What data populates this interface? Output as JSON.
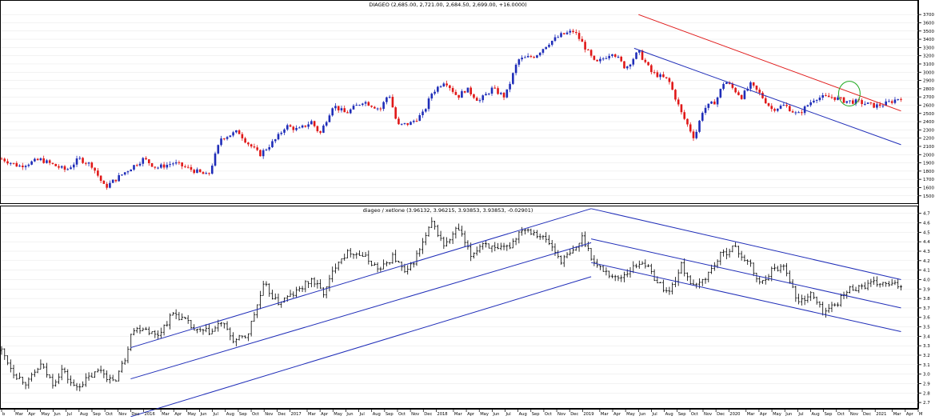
{
  "chart_data": [
    {
      "type": "candlestick",
      "title": "DIAGEO (2,685.00, 2,721.00, 2,684.50, 2,699.00, +16.0000)",
      "ylim": [
        1420,
        3760
      ],
      "yticks": [
        1500,
        1600,
        1700,
        1800,
        1900,
        2000,
        2100,
        2200,
        2300,
        2400,
        2500,
        2600,
        2700,
        2800,
        2900,
        3000,
        3100,
        3200,
        3300,
        3400,
        3500,
        3600,
        3700
      ],
      "up_color": "#1f2db8",
      "down_color": "#e01818",
      "anchors_t": [
        0,
        4,
        9,
        15,
        18,
        21,
        24,
        29,
        33,
        36,
        40,
        45,
        48,
        51,
        55,
        57,
        60,
        64,
        66,
        69,
        72,
        74,
        77,
        80,
        84,
        88,
        90,
        92,
        95,
        98,
        100,
        103,
        106,
        108,
        111,
        114,
        117,
        120,
        124,
        127,
        130,
        133,
        135,
        138,
        142,
        145,
        148,
        151,
        155,
        158,
        161,
        163,
        166,
        168,
        171,
        172,
        174,
        176,
        179,
        182,
        185,
        189,
        193,
        196,
        199,
        203,
        205,
        207,
        209
      ],
      "anchors_v": [
        1950,
        1860,
        1940,
        1810,
        1950,
        1870,
        1600,
        1800,
        1950,
        1840,
        1900,
        1800,
        1740,
        2200,
        2280,
        2150,
        2000,
        2200,
        2350,
        2300,
        2400,
        2250,
        2600,
        2500,
        2650,
        2550,
        2750,
        2350,
        2380,
        2500,
        2750,
        2900,
        2700,
        2800,
        2650,
        2800,
        2700,
        3150,
        3200,
        3350,
        3450,
        3500,
        3350,
        3100,
        3250,
        3050,
        3250,
        3000,
        2900,
        2500,
        2200,
        2550,
        2650,
        2900,
        2750,
        2700,
        2850,
        2750,
        2550,
        2600,
        2480,
        2690,
        2700,
        2650,
        2640,
        2590,
        2610,
        2650,
        2699
      ],
      "channels": [
        {
          "color": "#e01818",
          "points": [
            [
              148,
              3700
            ],
            [
              209,
              2530
            ]
          ]
        },
        {
          "color": "#1f2db8",
          "points": [
            [
              147,
              3290
            ],
            [
              209,
              2120
            ]
          ]
        }
      ],
      "annotations": [
        {
          "type": "ellipse",
          "color": "#22aa22",
          "cx": 197,
          "cy": 2740,
          "rx": 2.5,
          "ry": 150
        }
      ]
    },
    {
      "type": "ohlc",
      "title": "diageo / xetlone (3.96132, 3.96215, 3.93853, 3.93853, -0.02901)",
      "ylim": [
        2.65,
        4.74
      ],
      "yticks": [
        2.7,
        2.8,
        2.9,
        3.0,
        3.1,
        3.2,
        3.3,
        3.4,
        3.5,
        3.6,
        3.7,
        3.8,
        3.9,
        4.0,
        4.1,
        4.2,
        4.3,
        4.4,
        4.5,
        4.6,
        4.7
      ],
      "bar_color": "#000000",
      "anchors_t": [
        0,
        3,
        6,
        9,
        12,
        14,
        17,
        20,
        23,
        26,
        29,
        30,
        33,
        36,
        40,
        43,
        45,
        49,
        51,
        54,
        57,
        61,
        64,
        66,
        68,
        72,
        75,
        78,
        81,
        84,
        88,
        91,
        94,
        97,
        100,
        103,
        106,
        109,
        112,
        115,
        118,
        121,
        124,
        127,
        130,
        133,
        135,
        138,
        140,
        143,
        146,
        149,
        152,
        155,
        158,
        161,
        164,
        167,
        170,
        174,
        176,
        179,
        182,
        185,
        188,
        191,
        194,
        197,
        200,
        203,
        205,
        207,
        209
      ],
      "anchors_v": [
        3.25,
        3.0,
        2.9,
        3.1,
        2.9,
        3.05,
        2.85,
        2.95,
        3.05,
        2.9,
        3.2,
        3.45,
        3.5,
        3.4,
        3.65,
        3.55,
        3.45,
        3.45,
        3.55,
        3.35,
        3.4,
        3.95,
        3.75,
        3.8,
        3.85,
        4.0,
        3.85,
        4.2,
        4.3,
        4.25,
        4.1,
        4.25,
        4.05,
        4.3,
        4.6,
        4.35,
        4.55,
        4.25,
        4.4,
        4.3,
        4.35,
        4.55,
        4.5,
        4.4,
        4.2,
        4.3,
        4.45,
        4.15,
        4.1,
        4.0,
        4.1,
        4.2,
        4.0,
        3.85,
        4.15,
        3.9,
        4.05,
        4.25,
        4.35,
        4.15,
        3.95,
        4.1,
        4.15,
        3.75,
        3.85,
        3.65,
        3.75,
        3.9,
        3.93,
        3.96,
        3.95,
        3.94,
        3.938
      ],
      "channels": [
        {
          "color": "#1f2db8",
          "points": [
            [
              30,
              3.28
            ],
            [
              137,
              4.75
            ]
          ]
        },
        {
          "color": "#1f2db8",
          "points": [
            [
              30,
              2.95
            ],
            [
              137,
              4.39
            ]
          ]
        },
        {
          "color": "#1f2db8",
          "points": [
            [
              30,
              2.55
            ],
            [
              137,
              4.03
            ]
          ]
        },
        {
          "color": "#1f2db8",
          "points": [
            [
              137,
              4.75
            ],
            [
              209,
              4.0
            ]
          ]
        },
        {
          "color": "#1f2db8",
          "points": [
            [
              137,
              4.43
            ],
            [
              209,
              3.7
            ]
          ]
        },
        {
          "color": "#1f2db8",
          "points": [
            [
              137,
              4.18
            ],
            [
              209,
              3.45
            ]
          ]
        }
      ]
    }
  ],
  "x_axis": {
    "ticks": [
      {
        "t": 0,
        "label": "b"
      },
      {
        "t": 3,
        "label": "Mar"
      },
      {
        "t": 6,
        "label": "Apr"
      },
      {
        "t": 9,
        "label": "May"
      },
      {
        "t": 12,
        "label": "Jun"
      },
      {
        "t": 15,
        "label": "Jul"
      },
      {
        "t": 18,
        "label": "Aug"
      },
      {
        "t": 21,
        "label": "Sep"
      },
      {
        "t": 24,
        "label": "Oct"
      },
      {
        "t": 27,
        "label": "Nov"
      },
      {
        "t": 30,
        "label": "Dec"
      },
      {
        "t": 33,
        "label": "2016"
      },
      {
        "t": 37,
        "label": "Mar"
      },
      {
        "t": 40,
        "label": "Apr"
      },
      {
        "t": 43,
        "label": "May"
      },
      {
        "t": 46,
        "label": "Jun"
      },
      {
        "t": 49,
        "label": "Jul"
      },
      {
        "t": 52,
        "label": "Aug"
      },
      {
        "t": 55,
        "label": "Sep"
      },
      {
        "t": 58,
        "label": "Oct"
      },
      {
        "t": 61,
        "label": "Nov"
      },
      {
        "t": 64,
        "label": "Dec"
      },
      {
        "t": 67,
        "label": "2017"
      },
      {
        "t": 71,
        "label": "Mar"
      },
      {
        "t": 74,
        "label": "Apr"
      },
      {
        "t": 77,
        "label": "May"
      },
      {
        "t": 80,
        "label": "Jun"
      },
      {
        "t": 83,
        "label": "Jul"
      },
      {
        "t": 86,
        "label": "Aug"
      },
      {
        "t": 89,
        "label": "Sep"
      },
      {
        "t": 92,
        "label": "Oct"
      },
      {
        "t": 95,
        "label": "Nov"
      },
      {
        "t": 98,
        "label": "Dec"
      },
      {
        "t": 101,
        "label": "2018"
      },
      {
        "t": 105,
        "label": "Mar"
      },
      {
        "t": 108,
        "label": "Apr"
      },
      {
        "t": 111,
        "label": "May"
      },
      {
        "t": 114,
        "label": "Jun"
      },
      {
        "t": 117,
        "label": "Jul"
      },
      {
        "t": 120,
        "label": "Aug"
      },
      {
        "t": 123,
        "label": "Sep"
      },
      {
        "t": 126,
        "label": "Oct"
      },
      {
        "t": 129,
        "label": "Nov"
      },
      {
        "t": 132,
        "label": "Dec"
      },
      {
        "t": 135,
        "label": "2019"
      },
      {
        "t": 139,
        "label": "Mar"
      },
      {
        "t": 142,
        "label": "Apr"
      },
      {
        "t": 145,
        "label": "May"
      },
      {
        "t": 148,
        "label": "Jun"
      },
      {
        "t": 151,
        "label": "Jul"
      },
      {
        "t": 154,
        "label": "Aug"
      },
      {
        "t": 157,
        "label": "Sep"
      },
      {
        "t": 160,
        "label": "Oct"
      },
      {
        "t": 163,
        "label": "Nov"
      },
      {
        "t": 166,
        "label": "Dec"
      },
      {
        "t": 169,
        "label": "2020"
      },
      {
        "t": 173,
        "label": "Mar"
      },
      {
        "t": 176,
        "label": "Apr"
      },
      {
        "t": 179,
        "label": "May"
      },
      {
        "t": 182,
        "label": "Jun"
      },
      {
        "t": 185,
        "label": "Jul"
      },
      {
        "t": 188,
        "label": "Aug"
      },
      {
        "t": 191,
        "label": "Sep"
      },
      {
        "t": 194,
        "label": "Oct"
      },
      {
        "t": 197,
        "label": "Nov"
      },
      {
        "t": 200,
        "label": "Dec"
      },
      {
        "t": 203,
        "label": "2021"
      },
      {
        "t": 207,
        "label": "Mar"
      },
      {
        "t": 210,
        "label": "Apr"
      },
      {
        "t": 213,
        "label": "M"
      }
    ]
  },
  "colors": {
    "background": "#ffffff",
    "gridline": "#e6e6e6",
    "axis": "#000000",
    "panel_border": "#000000"
  }
}
